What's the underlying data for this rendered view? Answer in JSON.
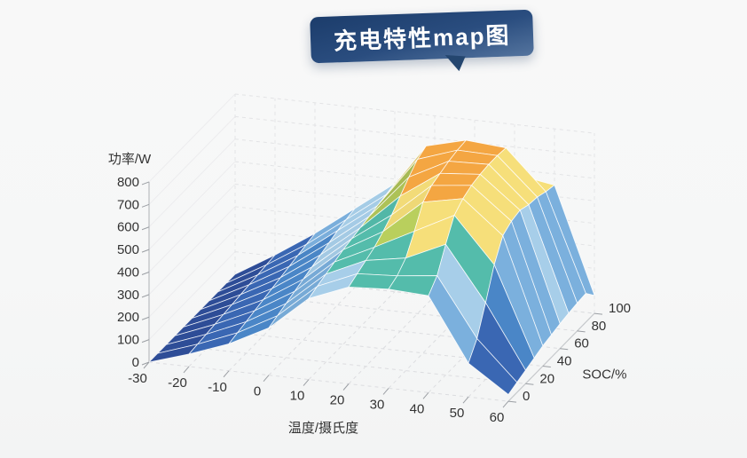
{
  "title": {
    "text": "充电特性map图"
  },
  "chart_data": {
    "type": "surface",
    "title": "充电特性map图",
    "xlabel": "温度/摄氏度",
    "ylabel": "SOC/%",
    "zlabel": "功率/W",
    "x": [
      -30,
      -20,
      -10,
      0,
      10,
      20,
      30,
      40,
      50,
      60
    ],
    "y": [
      0,
      10,
      20,
      30,
      40,
      50,
      60,
      70,
      80,
      90,
      100
    ],
    "x_tick_labels": [
      "-30",
      "-20",
      "-10",
      "0",
      "10",
      "20",
      "30",
      "40",
      "50",
      "60"
    ],
    "y_tick_labels": [
      "0",
      "20",
      "40",
      "60",
      "80",
      "100"
    ],
    "y_tick_values": [
      0,
      20,
      40,
      60,
      80,
      100
    ],
    "z_tick_labels": [
      "0",
      "100",
      "200",
      "300",
      "400",
      "500",
      "600",
      "700",
      "800"
    ],
    "z_tick_values": [
      0,
      100,
      200,
      300,
      400,
      500,
      600,
      700,
      800
    ],
    "zlim": [
      0,
      800
    ],
    "grid": true,
    "legend": "none",
    "z_rows_by_y": [
      [
        0,
        55,
        120,
        210,
        360,
        430,
        440,
        430,
        150,
        30
      ],
      [
        0,
        60,
        130,
        225,
        375,
        450,
        460,
        480,
        220,
        45
      ],
      [
        0,
        65,
        140,
        240,
        390,
        470,
        500,
        580,
        340,
        60
      ],
      [
        0,
        70,
        150,
        255,
        405,
        490,
        580,
        670,
        470,
        75
      ],
      [
        0,
        75,
        160,
        270,
        420,
        520,
        670,
        705,
        560,
        90
      ],
      [
        0,
        80,
        170,
        285,
        430,
        555,
        705,
        725,
        585,
        100
      ],
      [
        0,
        85,
        180,
        300,
        440,
        600,
        720,
        735,
        595,
        110
      ],
      [
        0,
        90,
        190,
        315,
        450,
        645,
        735,
        740,
        580,
        118
      ],
      [
        0,
        95,
        200,
        330,
        460,
        685,
        745,
        740,
        575,
        124
      ],
      [
        0,
        100,
        210,
        340,
        470,
        705,
        750,
        735,
        560,
        128
      ],
      [
        0,
        105,
        220,
        350,
        480,
        575,
        590,
        580,
        550,
        80
      ]
    ],
    "color_scale": [
      {
        "upto": 80,
        "color": "#2e4d97"
      },
      {
        "upto": 170,
        "color": "#3a67b3"
      },
      {
        "upto": 260,
        "color": "#4a86c7"
      },
      {
        "upto": 350,
        "color": "#7bb0dd"
      },
      {
        "upto": 430,
        "color": "#a7cee9"
      },
      {
        "upto": 520,
        "color": "#54bcab"
      },
      {
        "upto": 580,
        "color": "#b9cf5d"
      },
      {
        "upto": 665,
        "color": "#f6df7a"
      },
      {
        "upto": 9999,
        "color": "#f4a642"
      }
    ],
    "mesh_line_color": "#ffffff",
    "wall_line_color": "#e3e4e6",
    "floor_line_color": "#dcdde0",
    "axis_line_color": "#b9bcc0",
    "tick_color": "#9b9fa4",
    "label_color": "#333333"
  }
}
